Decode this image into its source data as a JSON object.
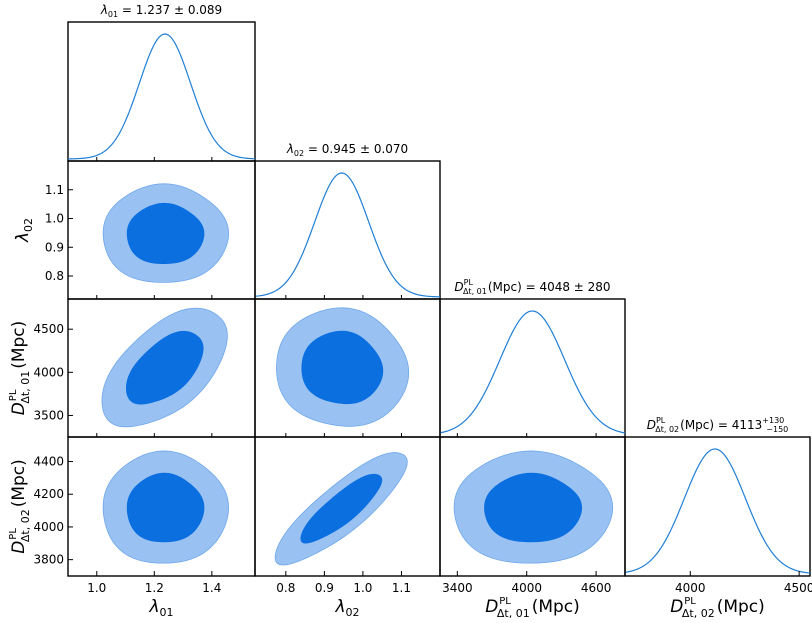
{
  "colors": {
    "outer_contour": "#99c2f2",
    "inner_contour": "#0b6fe0",
    "curve": "#1f7fd6"
  },
  "chart_data": {
    "type": "corner",
    "parameters": [
      {
        "id": "l01",
        "label_main": "λ",
        "label_sub": "01",
        "label_sup": "",
        "label_suffix": "",
        "range": [
          0.9,
          1.55
        ],
        "ticks": [
          1.0,
          1.2,
          1.4
        ],
        "tick_labels": [
          "1.0",
          "1.2",
          "1.4"
        ]
      },
      {
        "id": "l02",
        "label_main": "λ",
        "label_sub": "02",
        "label_sup": "",
        "label_suffix": "",
        "range": [
          0.72,
          1.2
        ],
        "ticks": [
          0.8,
          0.9,
          1.0,
          1.1
        ],
        "tick_labels": [
          "0.8",
          "0.9",
          "1.0",
          "1.1"
        ]
      },
      {
        "id": "d01",
        "label_main": "D",
        "label_sub": "Δt, 01",
        "label_sup": "PL",
        "label_suffix": "(Mpc)",
        "range": [
          3250,
          4850
        ],
        "ticks": [
          3500,
          4000,
          4500
        ],
        "tick_labels": [
          "3500",
          "4000",
          "4500"
        ],
        "xticks": [
          3400,
          4000,
          4600
        ],
        "xtick_labels": [
          "3400",
          "4000",
          "4600"
        ]
      },
      {
        "id": "d02",
        "label_main": "D",
        "label_sub": "Δt, 02",
        "label_sup": "PL",
        "label_suffix": "(Mpc)",
        "range": [
          3700,
          4550
        ],
        "ticks": [
          3800,
          4000,
          4200,
          4400
        ],
        "tick_labels": [
          "3800",
          "4000",
          "4200",
          "4400"
        ],
        "xticks": [
          4000,
          4500
        ],
        "xtick_labels": [
          "4000",
          "4500"
        ]
      }
    ],
    "titles": {
      "l01": {
        "main": "λ",
        "sub": "01",
        "text": " = 1.237 ± 0.089"
      },
      "l02": {
        "main": "λ",
        "sub": "02",
        "text": " = 0.945 ± 0.070"
      },
      "d01": {
        "main": "D",
        "sub": "Δt, 01",
        "sup": "PL",
        "text": "(Mpc) = 4048 ± 280"
      },
      "d02": {
        "main": "D",
        "sub": "Δt, 02",
        "sup": "PL",
        "text": "(Mpc) = 4113",
        "err_plus": "+130",
        "err_minus": "−150"
      }
    },
    "marginals": {
      "l01": {
        "mean": 1.237,
        "sigma": 0.089
      },
      "l02": {
        "mean": 0.945,
        "sigma": 0.07
      },
      "d01": {
        "mean": 4048,
        "sigma": 280
      },
      "d02": {
        "mean": 4113,
        "sigma": 140
      }
    },
    "pairs": [
      {
        "x": "l01",
        "y": "l02",
        "corr": 0.0
      },
      {
        "x": "l01",
        "y": "d01",
        "corr": 0.55
      },
      {
        "x": "l02",
        "y": "d01",
        "corr": -0.05
      },
      {
        "x": "l01",
        "y": "d02",
        "corr": 0.0
      },
      {
        "x": "l02",
        "y": "d02",
        "corr": 0.85
      },
      {
        "x": "d01",
        "y": "d02",
        "corr": 0.0
      }
    ],
    "contour_levels": [
      "68%",
      "95%"
    ]
  }
}
